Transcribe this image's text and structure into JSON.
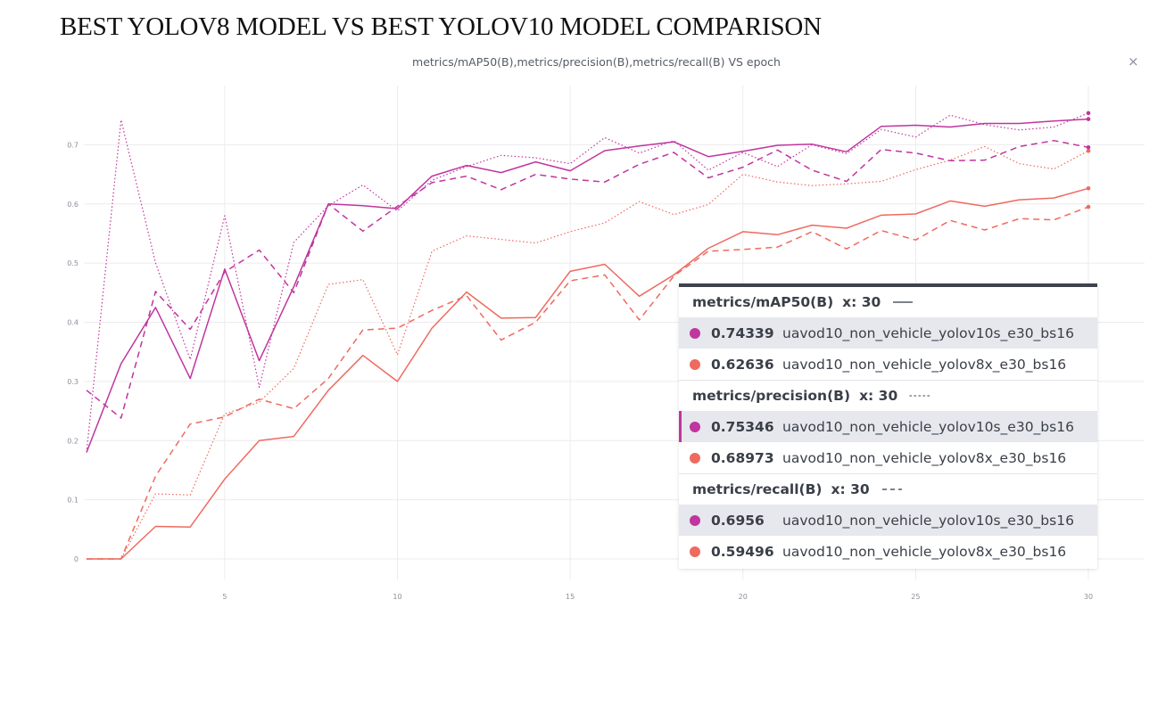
{
  "page": {
    "heading": "BEST YOLOV8 MODEL VS BEST YOLOV10 MODEL COMPARISON"
  },
  "chart": {
    "title": "metrics/mAP50(B),metrics/precision(B),metrics/recall(B) VS epoch",
    "close_label": "×"
  },
  "colors": {
    "yolov10s": "#c0359e",
    "yolov8x": "#ee6a5f",
    "grid": "#ececef",
    "axis_text": "#8a8f99"
  },
  "chart_data": {
    "type": "line",
    "title": "metrics/mAP50(B),metrics/precision(B),metrics/recall(B) VS epoch",
    "xlabel": "",
    "ylabel": "",
    "xlim": [
      1,
      30
    ],
    "ylim": [
      0,
      0.8
    ],
    "x_ticks": [
      5,
      10,
      15,
      20,
      25,
      30
    ],
    "y_ticks": [
      0,
      0.1,
      0.2,
      0.3,
      0.4,
      0.5,
      0.6,
      0.7
    ],
    "grid": true,
    "x": [
      1,
      2,
      3,
      4,
      5,
      6,
      7,
      8,
      9,
      10,
      11,
      12,
      13,
      14,
      15,
      16,
      17,
      18,
      19,
      20,
      21,
      22,
      23,
      24,
      25,
      26,
      27,
      28,
      29,
      30
    ],
    "series": [
      {
        "metric": "metrics/mAP50(B)",
        "style": "solid",
        "run": "uavod10_non_vehicle_yolov10s_e30_bs16",
        "values": [
          0.18,
          0.33,
          0.425,
          0.305,
          0.49,
          0.335,
          0.46,
          0.6,
          0.597,
          0.592,
          0.647,
          0.665,
          0.653,
          0.671,
          0.656,
          0.69,
          0.698,
          0.705,
          0.68,
          0.689,
          0.699,
          0.701,
          0.688,
          0.731,
          0.733,
          0.73,
          0.736,
          0.736,
          0.74,
          0.74339
        ]
      },
      {
        "metric": "metrics/mAP50(B)",
        "style": "solid",
        "run": "uavod10_non_vehicle_yolov8x_e30_bs16",
        "values": [
          0.0,
          0.0,
          0.055,
          0.054,
          0.135,
          0.2,
          0.207,
          0.285,
          0.344,
          0.3,
          0.39,
          0.451,
          0.407,
          0.408,
          0.486,
          0.498,
          0.444,
          0.48,
          0.525,
          0.553,
          0.548,
          0.564,
          0.559,
          0.581,
          0.583,
          0.605,
          0.596,
          0.607,
          0.61,
          0.62636
        ]
      },
      {
        "metric": "metrics/precision(B)",
        "style": "dotted",
        "run": "uavod10_non_vehicle_yolov10s_e30_bs16",
        "values": [
          0.18,
          0.742,
          0.5,
          0.337,
          0.58,
          0.29,
          0.535,
          0.597,
          0.632,
          0.588,
          0.64,
          0.663,
          0.682,
          0.678,
          0.668,
          0.712,
          0.686,
          0.707,
          0.657,
          0.687,
          0.663,
          0.7,
          0.685,
          0.726,
          0.713,
          0.75,
          0.734,
          0.725,
          0.73,
          0.75346
        ]
      },
      {
        "metric": "metrics/precision(B)",
        "style": "dotted",
        "run": "uavod10_non_vehicle_yolov8x_e30_bs16",
        "values": [
          0.0,
          0.0,
          0.11,
          0.108,
          0.245,
          0.265,
          0.322,
          0.464,
          0.472,
          0.345,
          0.52,
          0.546,
          0.54,
          0.534,
          0.553,
          0.568,
          0.604,
          0.582,
          0.599,
          0.65,
          0.637,
          0.631,
          0.634,
          0.638,
          0.658,
          0.674,
          0.697,
          0.668,
          0.659,
          0.68973
        ]
      },
      {
        "metric": "metrics/recall(B)",
        "style": "dashed",
        "run": "uavod10_non_vehicle_yolov10s_e30_bs16",
        "values": [
          0.285,
          0.238,
          0.452,
          0.388,
          0.485,
          0.522,
          0.45,
          0.6,
          0.554,
          0.596,
          0.636,
          0.647,
          0.624,
          0.65,
          0.642,
          0.637,
          0.667,
          0.687,
          0.644,
          0.662,
          0.691,
          0.657,
          0.638,
          0.692,
          0.686,
          0.673,
          0.674,
          0.697,
          0.707,
          0.6956
        ]
      },
      {
        "metric": "metrics/recall(B)",
        "style": "dashed",
        "run": "uavod10_non_vehicle_yolov8x_e30_bs16",
        "values": [
          0.0,
          0.0,
          0.14,
          0.228,
          0.24,
          0.27,
          0.254,
          0.305,
          0.387,
          0.39,
          0.42,
          0.445,
          0.37,
          0.4,
          0.47,
          0.48,
          0.404,
          0.478,
          0.52,
          0.523,
          0.527,
          0.553,
          0.524,
          0.555,
          0.539,
          0.572,
          0.556,
          0.575,
          0.573,
          0.59496
        ]
      }
    ]
  },
  "tooltip": {
    "groups": [
      {
        "metric": "metrics/mAP50(B)",
        "x_label": "x: 30",
        "line_style": "solid",
        "rows": [
          {
            "value": "0.74339",
            "run": "uavod10_non_vehicle_yolov10s_e30_bs16",
            "color": "#c0359e",
            "shaded": true,
            "marked": false
          },
          {
            "value": "0.62636",
            "run": "uavod10_non_vehicle_yolov8x_e30_bs16",
            "color": "#ee6a5f",
            "shaded": false,
            "marked": false
          }
        ]
      },
      {
        "metric": "metrics/precision(B)",
        "x_label": "x: 30",
        "line_style": "dotted",
        "rows": [
          {
            "value": "0.75346",
            "run": "uavod10_non_vehicle_yolov10s_e30_bs16",
            "color": "#c0359e",
            "shaded": true,
            "marked": true
          },
          {
            "value": "0.68973",
            "run": "uavod10_non_vehicle_yolov8x_e30_bs16",
            "color": "#ee6a5f",
            "shaded": false,
            "marked": false
          }
        ]
      },
      {
        "metric": "metrics/recall(B)",
        "x_label": "x: 30",
        "line_style": "dashed",
        "rows": [
          {
            "value": "0.6956",
            "run": "uavod10_non_vehicle_yolov10s_e30_bs16",
            "color": "#c0359e",
            "shaded": true,
            "marked": false
          },
          {
            "value": "0.59496",
            "run": "uavod10_non_vehicle_yolov8x_e30_bs16",
            "color": "#ee6a5f",
            "shaded": false,
            "marked": false
          }
        ]
      }
    ]
  }
}
